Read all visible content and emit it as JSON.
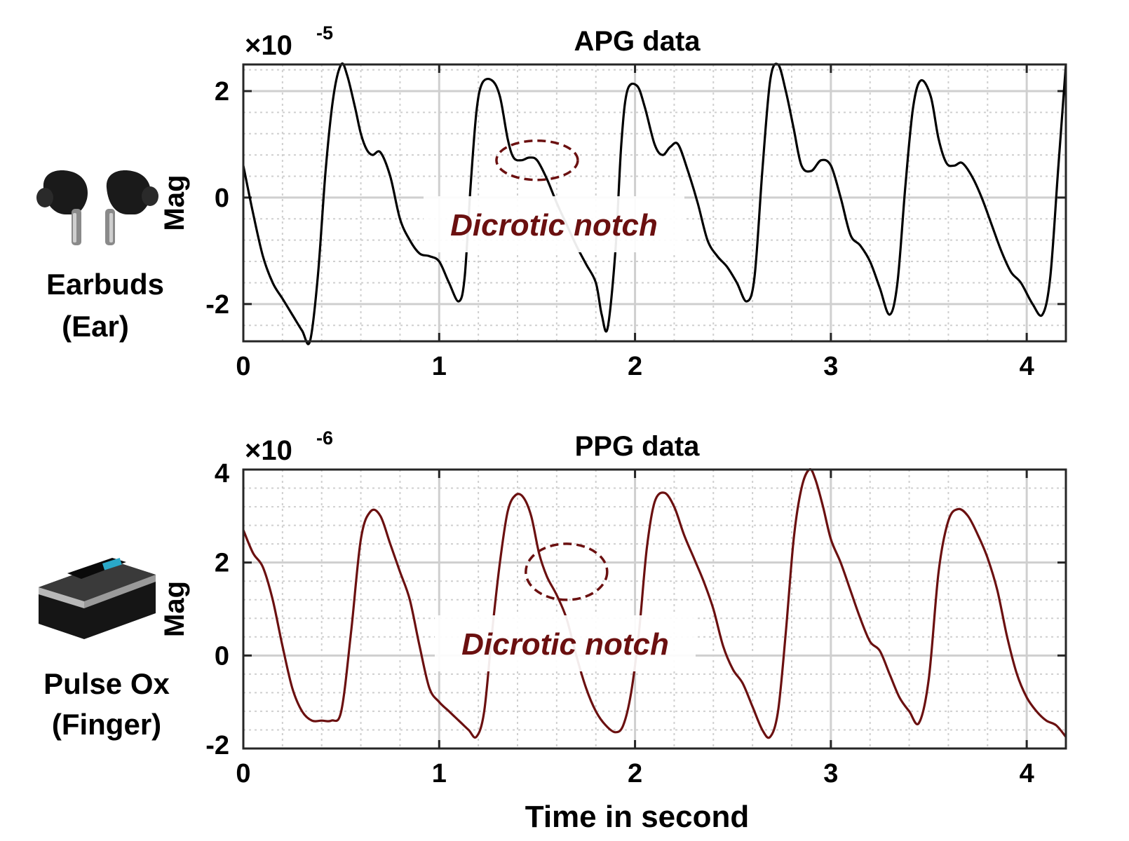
{
  "devices": [
    {
      "line1": "Earbuds",
      "line2": "(Ear)",
      "icon": "earbuds-icon"
    },
    {
      "line1": "Pulse Ox",
      "line2": "(Finger)",
      "icon": "pulse-oximeter-icon"
    }
  ],
  "chart_data": [
    {
      "type": "line",
      "title": "APG data",
      "ylabel": "Mag",
      "xlabel": "",
      "exponent": "-5",
      "xlim": [
        0,
        4.2
      ],
      "ylim": [
        -2.7,
        2.5
      ],
      "xticks": [
        "0",
        "1",
        "2",
        "3",
        "4"
      ],
      "xtick_values": [
        0,
        1,
        2,
        3,
        4
      ],
      "yticks": [
        "-2",
        "0",
        "2"
      ],
      "ytick_values": [
        -2,
        0,
        2
      ],
      "grid": true,
      "minor_grid": true,
      "color": "#000000",
      "annotation": {
        "text": "Dicrotic notch",
        "color": "#6b1010",
        "at": [
          1.5,
          0.7
        ]
      },
      "series": [
        {
          "x": [
            0,
            0.05,
            0.1,
            0.15,
            0.2,
            0.25,
            0.3,
            0.34,
            0.38,
            0.42,
            0.46,
            0.5,
            0.53,
            0.57,
            0.6,
            0.63,
            0.66,
            0.7,
            0.75,
            0.8,
            0.85,
            0.9,
            0.95,
            1.0,
            1.05,
            1.1,
            1.13,
            1.16,
            1.19,
            1.22,
            1.27,
            1.31,
            1.35,
            1.38,
            1.42,
            1.46,
            1.5,
            1.55,
            1.6,
            1.65,
            1.7,
            1.75,
            1.8,
            1.83,
            1.86,
            1.9,
            1.93,
            1.96,
            2.01,
            2.05,
            2.1,
            2.14,
            2.18,
            2.22,
            2.27,
            2.32,
            2.37,
            2.42,
            2.47,
            2.52,
            2.57,
            2.61,
            2.65,
            2.69,
            2.73,
            2.77,
            2.81,
            2.85,
            2.9,
            2.95,
            3.0,
            3.05,
            3.1,
            3.15,
            3.2,
            3.25,
            3.3,
            3.34,
            3.38,
            3.42,
            3.46,
            3.51,
            3.55,
            3.59,
            3.63,
            3.67,
            3.72,
            3.77,
            3.82,
            3.87,
            3.92,
            3.97,
            4.03,
            4.08,
            4.12,
            4.16,
            4.2
          ],
          "y": [
            0.6,
            -0.3,
            -1.1,
            -1.6,
            -1.9,
            -2.2,
            -2.5,
            -2.7,
            -1.5,
            0.5,
            1.9,
            2.5,
            2.3,
            1.7,
            1.2,
            0.9,
            0.8,
            0.85,
            0.4,
            -0.4,
            -0.8,
            -1.05,
            -1.1,
            -1.2,
            -1.6,
            -1.95,
            -1.5,
            0.2,
            1.6,
            2.15,
            2.2,
            1.9,
            1.1,
            0.75,
            0.7,
            0.75,
            0.7,
            0.35,
            -0.1,
            -0.5,
            -0.9,
            -1.25,
            -1.6,
            -2.2,
            -2.45,
            -1.0,
            1.0,
            2.0,
            2.1,
            1.7,
            1.0,
            0.8,
            0.95,
            1.0,
            0.5,
            -0.1,
            -0.8,
            -1.1,
            -1.3,
            -1.6,
            -1.95,
            -1.5,
            0.5,
            2.2,
            2.5,
            2.0,
            1.3,
            0.6,
            0.5,
            0.7,
            0.6,
            0.0,
            -0.7,
            -0.9,
            -1.2,
            -1.7,
            -2.2,
            -1.6,
            0.2,
            1.7,
            2.2,
            1.9,
            1.1,
            0.65,
            0.6,
            0.65,
            0.4,
            0.0,
            -0.5,
            -1.0,
            -1.4,
            -1.6,
            -2.0,
            -2.2,
            -1.5,
            0.5,
            2.5
          ]
        }
      ]
    },
    {
      "type": "line",
      "title": "PPG data",
      "ylabel": "Mag",
      "xlabel": "Time in second",
      "exponent": "-6",
      "xlim": [
        0,
        4.2
      ],
      "ylim": [
        -2,
        4
      ],
      "xticks": [
        "0",
        "1",
        "2",
        "3",
        "4"
      ],
      "xtick_values": [
        0,
        1,
        2,
        3,
        4
      ],
      "yticks": [
        "-2",
        "0",
        "2",
        "4"
      ],
      "ytick_values": [
        -2,
        0,
        2,
        4
      ],
      "grid": true,
      "minor_grid": true,
      "color": "#6b1010",
      "annotation": {
        "text": "Dicrotic notch",
        "color": "#6b1010",
        "at": [
          1.65,
          1.8
        ]
      },
      "series": [
        {
          "x": [
            0,
            0.05,
            0.1,
            0.15,
            0.2,
            0.25,
            0.3,
            0.35,
            0.4,
            0.45,
            0.5,
            0.55,
            0.6,
            0.65,
            0.7,
            0.75,
            0.8,
            0.85,
            0.9,
            0.95,
            1.0,
            1.05,
            1.1,
            1.15,
            1.19,
            1.23,
            1.27,
            1.31,
            1.35,
            1.39,
            1.43,
            1.47,
            1.51,
            1.55,
            1.6,
            1.65,
            1.7,
            1.75,
            1.8,
            1.85,
            1.9,
            1.94,
            1.98,
            2.02,
            2.06,
            2.1,
            2.15,
            2.2,
            2.25,
            2.3,
            2.35,
            2.4,
            2.45,
            2.5,
            2.55,
            2.6,
            2.65,
            2.69,
            2.73,
            2.77,
            2.81,
            2.85,
            2.89,
            2.92,
            2.96,
            3.0,
            3.05,
            3.1,
            3.15,
            3.2,
            3.25,
            3.3,
            3.35,
            3.4,
            3.45,
            3.5,
            3.55,
            3.6,
            3.65,
            3.7,
            3.75,
            3.8,
            3.85,
            3.9,
            3.95,
            4.0,
            4.05,
            4.1,
            4.15,
            4.2
          ],
          "y": [
            2.7,
            2.2,
            1.9,
            1.2,
            0.2,
            -0.7,
            -1.2,
            -1.4,
            -1.4,
            -1.4,
            -1.2,
            0.5,
            2.5,
            3.1,
            3.0,
            2.4,
            1.8,
            1.2,
            0.2,
            -0.7,
            -1.0,
            -1.2,
            -1.4,
            -1.6,
            -1.75,
            -1.2,
            0.5,
            2.0,
            3.1,
            3.45,
            3.4,
            3.0,
            2.2,
            1.7,
            1.3,
            0.8,
            0.0,
            -0.7,
            -1.2,
            -1.5,
            -1.65,
            -1.5,
            -0.8,
            0.5,
            2.3,
            3.3,
            3.5,
            3.2,
            2.6,
            2.1,
            1.6,
            1.0,
            0.2,
            -0.3,
            -0.6,
            -1.1,
            -1.6,
            -1.75,
            -1.2,
            0.5,
            2.5,
            3.6,
            4.0,
            3.8,
            3.2,
            2.5,
            2.0,
            1.4,
            0.8,
            0.3,
            0.1,
            -0.4,
            -0.9,
            -1.2,
            -1.45,
            -0.5,
            1.8,
            2.9,
            3.15,
            3.0,
            2.6,
            2.1,
            1.4,
            0.4,
            -0.4,
            -0.9,
            -1.2,
            -1.4,
            -1.5,
            -1.75
          ]
        }
      ]
    }
  ]
}
